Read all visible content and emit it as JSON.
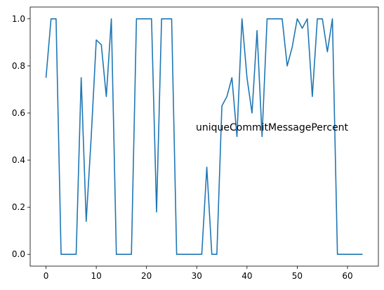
{
  "chart_data": {
    "type": "line",
    "title": "",
    "xlabel": "",
    "ylabel": "",
    "annotation": "uniqueCommitMessagePercent",
    "xlim": [
      -3.15,
      66.15
    ],
    "ylim": [
      -0.05,
      1.05
    ],
    "xticks": [
      0,
      10,
      20,
      30,
      40,
      50,
      60
    ],
    "xtick_labels": [
      "0",
      "10",
      "20",
      "30",
      "40",
      "50",
      "60"
    ],
    "yticks": [
      0.0,
      0.2,
      0.4,
      0.6,
      0.8,
      1.0
    ],
    "ytick_labels": [
      "0.0",
      "0.2",
      "0.4",
      "0.6",
      "0.8",
      "1.0"
    ],
    "grid": false,
    "line_color": "#1f77b4",
    "series": [
      {
        "x": [
          0,
          1,
          2,
          3,
          4,
          5,
          6,
          7,
          8,
          9,
          10,
          11,
          12,
          13,
          14,
          15,
          16,
          17,
          18,
          19,
          20,
          21,
          22,
          23,
          24,
          25,
          26,
          27,
          28,
          29,
          30,
          31,
          32,
          33,
          34,
          35,
          36,
          37,
          38,
          39,
          40,
          41,
          42,
          43,
          44,
          45,
          46,
          47,
          48,
          49,
          50,
          51,
          52,
          53,
          54,
          55,
          56,
          57,
          58,
          59,
          60,
          61,
          62,
          63
        ],
        "y": [
          0.75,
          1.0,
          1.0,
          0.0,
          0.0,
          0.0,
          0.0,
          0.75,
          0.14,
          0.5,
          0.91,
          0.89,
          0.67,
          1.0,
          0.0,
          0.0,
          0.0,
          0.0,
          1.0,
          1.0,
          1.0,
          1.0,
          0.18,
          1.0,
          1.0,
          1.0,
          0.0,
          0.0,
          0.0,
          0.0,
          0.0,
          0.0,
          0.37,
          0.0,
          0.0,
          0.63,
          0.67,
          0.75,
          0.5,
          1.0,
          0.75,
          0.6,
          0.95,
          0.5,
          1.0,
          1.0,
          1.0,
          1.0,
          0.8,
          0.88,
          1.0,
          0.96,
          1.0,
          0.67,
          1.0,
          1.0,
          0.86,
          1.0,
          0.0,
          0.0,
          0.0,
          0.0,
          0.0,
          0.0
        ]
      }
    ]
  }
}
